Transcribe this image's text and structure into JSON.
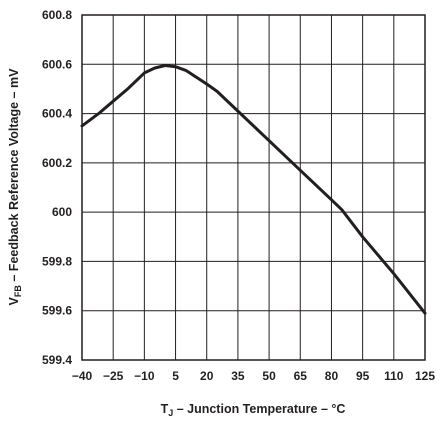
{
  "chart_data": {
    "type": "line",
    "xlabel": {
      "main": "T",
      "sub": "J",
      "rest": " – Junction Temperature – °C"
    },
    "ylabel": {
      "main": "V",
      "sub": "FB",
      "rest": " – Feedback Reference Voltage – mV"
    },
    "x_ticks": [
      "−40",
      "−25",
      "−10",
      "5",
      "20",
      "35",
      "50",
      "65",
      "80",
      "95",
      "110",
      "125"
    ],
    "y_ticks": [
      "599.4",
      "599.6",
      "599.8",
      "600",
      "600.2",
      "600.4",
      "600.6",
      "600.8"
    ],
    "xlim": [
      -40,
      125
    ],
    "ylim": [
      599.4,
      600.8
    ],
    "grid": true,
    "series": [
      {
        "x": [
          -40,
          -32,
          -25,
          -18,
          -10,
          -5,
          0,
          5,
          10,
          20,
          25,
          35,
          50,
          65,
          80,
          85,
          95,
          110,
          125
        ],
        "y": [
          600.35,
          600.4,
          600.45,
          600.5,
          600.565,
          600.585,
          600.595,
          600.59,
          600.575,
          600.52,
          600.49,
          600.41,
          600.29,
          600.17,
          600.05,
          600.01,
          599.9,
          599.75,
          599.59
        ]
      }
    ],
    "line_color": "#231f20",
    "grid_color": "#231f20"
  }
}
